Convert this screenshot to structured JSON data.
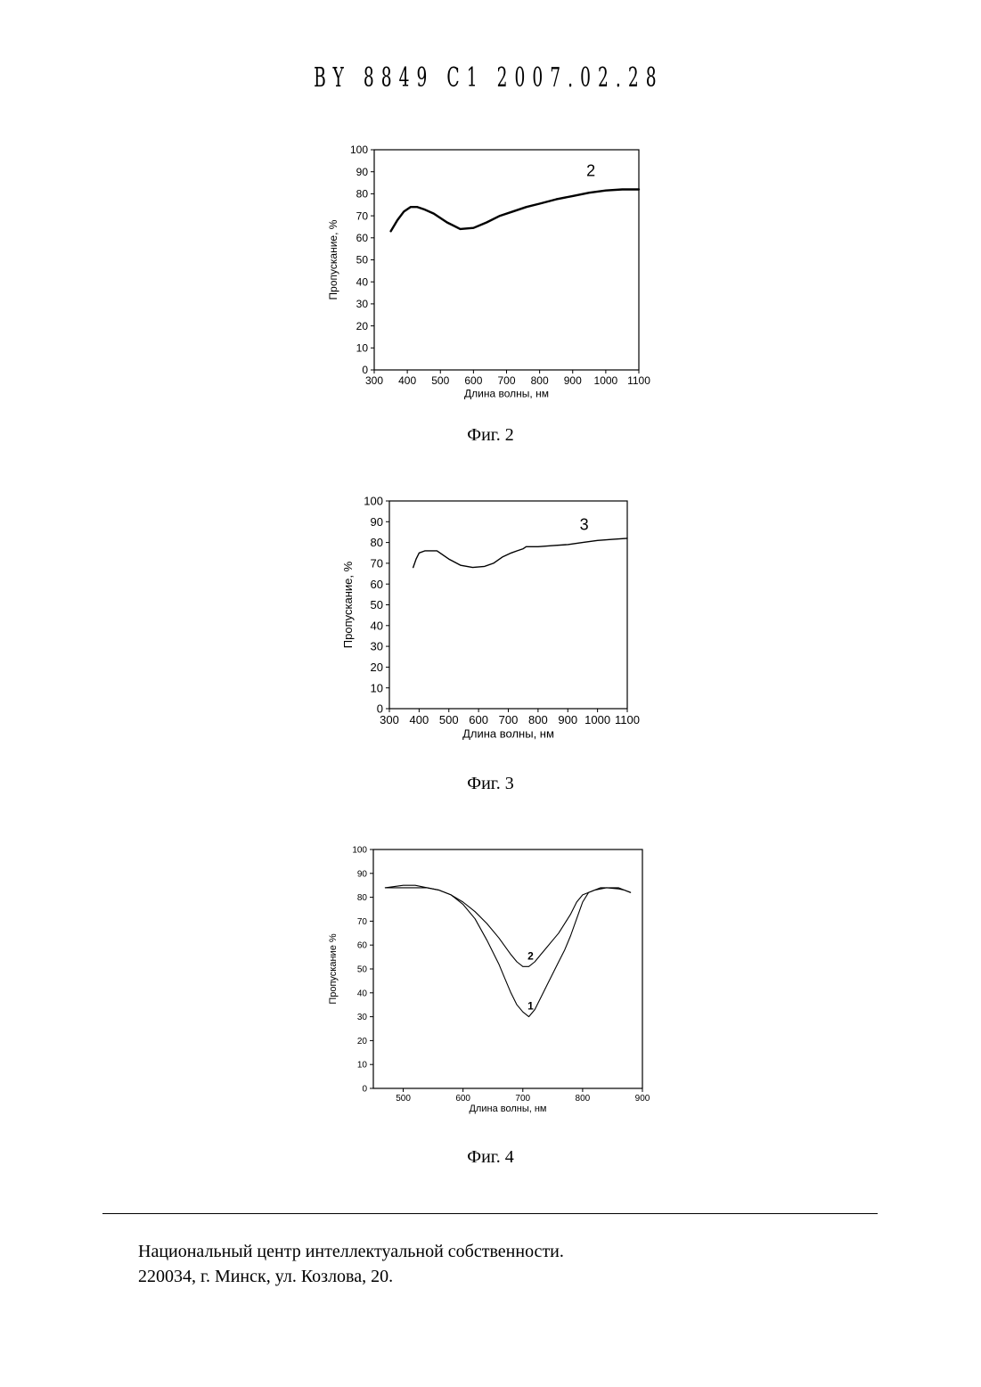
{
  "header": "BY 8849 C1 2007.02.28",
  "charts": [
    {
      "type": "line",
      "title": "",
      "caption": "Фиг. 2",
      "xlabel": "Длина волны, нм",
      "ylabel": "Пропускание, %",
      "xlim": [
        300,
        1100
      ],
      "ylim": [
        0,
        100
      ],
      "xticks": [
        300,
        400,
        500,
        600,
        700,
        800,
        900,
        1000,
        1100
      ],
      "yticks": [
        0,
        10,
        20,
        30,
        40,
        50,
        60,
        70,
        80,
        90,
        100
      ],
      "series": [
        {
          "label": "2",
          "x": [
            350,
            370,
            390,
            410,
            430,
            450,
            480,
            520,
            560,
            600,
            640,
            680,
            720,
            760,
            800,
            850,
            900,
            950,
            1000,
            1050,
            1100
          ],
          "y": [
            63,
            68,
            72,
            74,
            74,
            73,
            71,
            67,
            64,
            64.5,
            67,
            70,
            72,
            74,
            75.5,
            77.5,
            79,
            80.5,
            81.5,
            82,
            82
          ]
        }
      ]
    },
    {
      "type": "line",
      "title": "",
      "caption": "Фиг. 3",
      "xlabel": "Длина волны, нм",
      "ylabel": "Пропускание, %",
      "xlim": [
        300,
        1100
      ],
      "ylim": [
        0,
        100
      ],
      "xticks": [
        300,
        400,
        500,
        600,
        700,
        800,
        900,
        1000,
        1100
      ],
      "yticks": [
        0,
        10,
        20,
        30,
        40,
        50,
        60,
        70,
        80,
        90,
        100
      ],
      "series": [
        {
          "label": "3",
          "x": [
            380,
            390,
            400,
            420,
            440,
            460,
            480,
            500,
            540,
            580,
            620,
            650,
            680,
            710,
            730,
            750,
            760,
            800,
            850,
            900,
            950,
            1000,
            1050,
            1100
          ],
          "y": [
            68,
            72,
            75,
            76,
            76,
            76,
            74,
            72,
            69,
            68,
            68.5,
            70,
            73,
            75,
            76,
            77,
            78,
            78,
            78.5,
            79,
            80,
            81,
            81.5,
            82
          ]
        }
      ]
    },
    {
      "type": "line",
      "title": "",
      "caption": "Фиг. 4",
      "xlabel": "Длина волны, нм",
      "ylabel": "Пропускание %",
      "xlim": [
        450,
        900
      ],
      "ylim": [
        0,
        100
      ],
      "xticks": [
        500,
        600,
        700,
        800,
        900
      ],
      "yticks": [
        0,
        10,
        20,
        30,
        40,
        50,
        60,
        70,
        80,
        90,
        100
      ],
      "series": [
        {
          "label": "1",
          "x": [
            470,
            500,
            520,
            540,
            560,
            580,
            600,
            620,
            640,
            660,
            670,
            680,
            690,
            700,
            710,
            720,
            730,
            740,
            750,
            760,
            770,
            780,
            790,
            800,
            810,
            830,
            850,
            860,
            870,
            880
          ],
          "y": [
            84,
            85,
            85,
            84,
            83,
            81,
            77,
            71,
            62,
            52,
            46,
            40,
            35,
            32,
            30,
            33,
            38,
            43,
            48,
            53,
            58,
            64,
            71,
            78,
            82,
            84,
            84,
            84,
            83,
            82
          ]
        },
        {
          "label": "2",
          "x": [
            470,
            500,
            540,
            560,
            580,
            600,
            620,
            640,
            660,
            680,
            690,
            700,
            710,
            720,
            730,
            740,
            750,
            760,
            770,
            780,
            790,
            800,
            820,
            840,
            860,
            870,
            880
          ],
          "y": [
            84,
            84,
            84,
            83,
            81,
            78,
            74,
            69,
            63,
            56,
            53,
            51,
            51,
            53,
            56,
            59,
            62,
            65,
            69,
            73,
            78,
            81,
            83,
            84,
            83.5,
            83,
            82
          ]
        }
      ]
    }
  ],
  "footer": {
    "line1": "Национальный центр интеллектуальной собственности.",
    "line2": "220034, г. Минск, ул. Козлова, 20."
  }
}
